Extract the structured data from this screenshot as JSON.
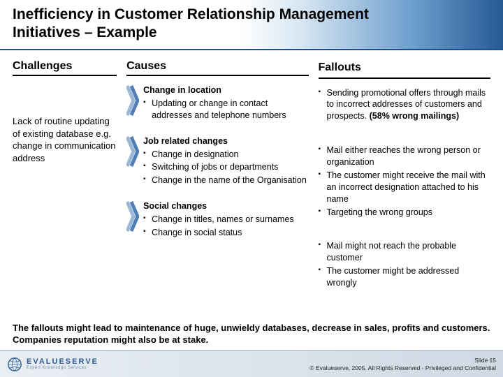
{
  "colors": {
    "accent": "#1f4e8c",
    "arrow_outer": "#9ab7d6",
    "arrow_inner": "#4f7fb4",
    "header_grad_end": "#265a94",
    "footer_bg_start": "#e9eef3",
    "footer_bg_end": "#cfd9e4"
  },
  "title": "Inefficiency in Customer Relationship Management Initiatives – Example",
  "headings": {
    "challenges": "Challenges",
    "causes": "Causes",
    "fallouts": "Fallouts"
  },
  "challenges_text": "Lack of routine updating of existing database e.g. change in communication address",
  "causes": [
    {
      "lead": "Change in location",
      "items": [
        "Updating or change in contact addresses and telephone numbers"
      ]
    },
    {
      "lead": "Job related changes",
      "items": [
        "Change in designation",
        "Switching of jobs or departments",
        "Change in the name of the Organisation"
      ]
    },
    {
      "lead": "Social changes",
      "items": [
        "Change in titles, names or surnames",
        "Change in social status"
      ]
    }
  ],
  "fallouts": [
    {
      "items_html": [
        "Sending promotional offers through mails to incorrect addresses of customers and prospects. <b class=\"inline\">(58% wrong mailings)</b>"
      ]
    },
    {
      "items_html": [
        "Mail either reaches the wrong person or organization",
        "The customer might receive the mail with an incorrect designation attached to his name",
        "Targeting the wrong groups"
      ]
    },
    {
      "items_html": [
        "Mail might not reach the probable customer",
        "The customer might be addressed wrongly"
      ]
    }
  ],
  "footer_note": "The fallouts might lead to maintenance of huge, unwieldy databases, decrease in sales, profits and customers. Companies reputation might also be at stake.",
  "logo": {
    "name": "EVALUESERVE",
    "tag": "Expert Knowledge Services"
  },
  "copyright": {
    "slide": "Slide 15",
    "line": "© Evalueserve, 2005. All Rights Reserved - Privileged and Confidential"
  }
}
